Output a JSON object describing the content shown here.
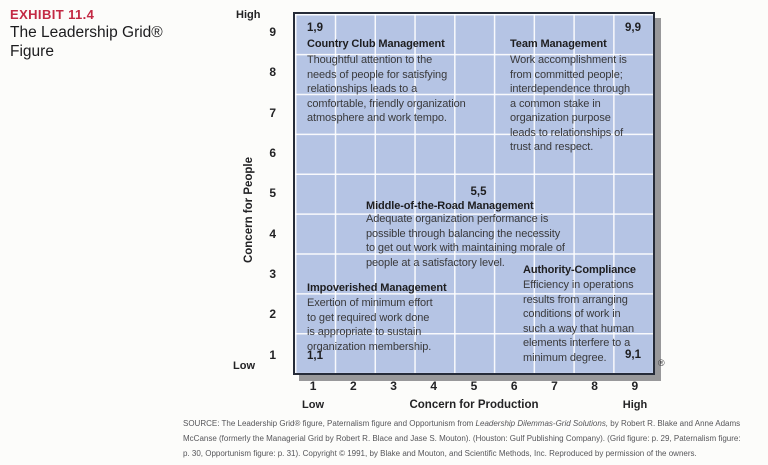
{
  "exhibit": {
    "kicker": "EXHIBIT 11.4",
    "title": "The Leadership Grid®\nFigure"
  },
  "chart": {
    "type": "grid-diagram",
    "y_axis": {
      "label": "Concern for People",
      "high": "High",
      "low": "Low",
      "ticks": [
        "9",
        "8",
        "7",
        "6",
        "5",
        "4",
        "3",
        "2",
        "1"
      ]
    },
    "x_axis": {
      "label": "Concern for Production",
      "low": "Low",
      "high": "High",
      "ticks": [
        "1",
        "2",
        "3",
        "4",
        "5",
        "6",
        "7",
        "8",
        "9"
      ]
    },
    "registered_mark": "®",
    "quadrants": {
      "country_club": {
        "coord": "1,9",
        "title": "Country Club Management",
        "desc": "Thoughtful attention to the\nneeds of people for satisfying\nrelationships leads to a\ncomfortable, friendly organization\natmosphere and work tempo."
      },
      "team": {
        "coord": "9,9",
        "title": "Team Management",
        "desc": "Work accomplishment is\nfrom committed people;\ninterdependence through\na common stake in\norganization purpose\nleads to relationships of\ntrust and respect."
      },
      "middle": {
        "coord": "5,5",
        "title": "Middle-of-the-Road Management",
        "desc": "Adequate organization performance is\npossible through balancing the necessity\nto get out work with maintaining morale of\npeople at a satisfactory level."
      },
      "impoverished": {
        "coord": "1,1",
        "title": "Impoverished Management",
        "desc": "Exertion of minimum effort\nto get required work done\nis appropriate to sustain\norganization membership."
      },
      "authority_compliance": {
        "coord": "9,1",
        "title": "Authority-Compliance",
        "desc": "Efficiency in operations\nresults from arranging\nconditions of work in\nsuch a way that human\nelements interfere to a\nminimum degree."
      }
    }
  },
  "source": {
    "line1_prefix": "SOURCE: The Leadership Grid® figure, Paternalism figure and Opportunism from ",
    "line1_italic": "Leadership Dilemmas-Grid Solutions,",
    "line1_suffix": " by Robert R. Blake and Anne Adams",
    "line2": "McCanse (formerly the Managerial Grid by Robert R. Blace and Jase S. Mouton). (Houston: Gulf Publishing Company). (Grid figure: p. 29, Paternalism figure:",
    "line3": "p. 30, Opportunism figure: p. 31). Copyright © 1991, by Blake and Mouton, and Scientific Methods, Inc. Reproduced by permission of the owners."
  },
  "colors": {
    "accent_red": "#c32944",
    "grid_fill": "#b5c4e4",
    "grid_border": "#252b38",
    "grid_lines": "#ffffff",
    "shadow_gray": "#98989a"
  }
}
